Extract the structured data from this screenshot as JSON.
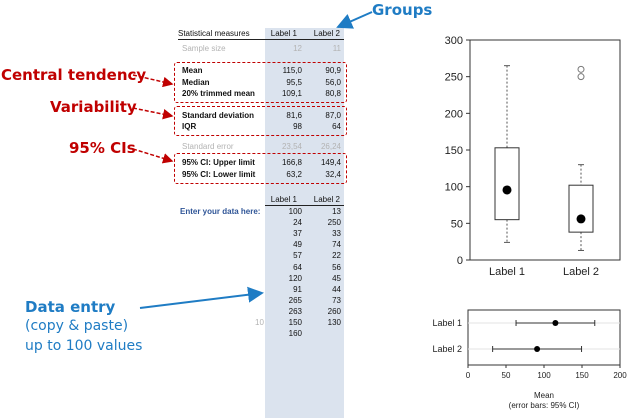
{
  "table": {
    "header": {
      "title": "Statistical measures",
      "label1": "Label 1",
      "label2": "Label 2"
    },
    "sample_size": {
      "label": "Sample size",
      "v1": "12",
      "v2": "11"
    },
    "central": [
      {
        "label": "Mean",
        "v1": "115,0",
        "v2": "90,9"
      },
      {
        "label": "Median",
        "v1": "95,5",
        "v2": "56,0"
      },
      {
        "label": "20% trimmed mean",
        "v1": "109,1",
        "v2": "80,8"
      }
    ],
    "variability": [
      {
        "label": "Standard deviation",
        "v1": "81,6",
        "v2": "87,0"
      },
      {
        "label": "IQR",
        "v1": "98",
        "v2": "64"
      }
    ],
    "std_error": {
      "label": "Standard error",
      "v1": "23,54",
      "v2": "26,24"
    },
    "ci": [
      {
        "label": "95% CI: Upper limit",
        "v1": "166,8",
        "v2": "149,4"
      },
      {
        "label": "95% CI: Lower limit",
        "v1": "63,2",
        "v2": "32,4"
      }
    ],
    "entry_header": {
      "label1": "Label 1",
      "label2": "Label 2"
    },
    "entry_prompt": "Enter your data here:",
    "row_marker": "10",
    "data_rows": [
      [
        "100",
        "13"
      ],
      [
        "24",
        "250"
      ],
      [
        "37",
        "33"
      ],
      [
        "49",
        "74"
      ],
      [
        "57",
        "22"
      ],
      [
        "64",
        "56"
      ],
      [
        "120",
        "45"
      ],
      [
        "91",
        "44"
      ],
      [
        "265",
        "73"
      ],
      [
        "263",
        "260"
      ],
      [
        "150",
        "130"
      ],
      [
        "160",
        ""
      ]
    ]
  },
  "annotations": {
    "groups": "Groups",
    "central": "Central tendency",
    "variability": "Variability",
    "ci": "95% CIs",
    "data_entry_title": "Data entry",
    "data_entry_line2": "(copy & paste)",
    "data_entry_line3": "up to 100 values",
    "annotation_color_red": "#c00000",
    "annotation_color_blue": "#1f7cc4"
  },
  "chart_data": [
    {
      "type": "boxplot",
      "categories": [
        "Label 1",
        "Label 2"
      ],
      "ylim": [
        0,
        300
      ],
      "yticks": [
        "0",
        "50",
        "100",
        "150",
        "200",
        "250",
        "300"
      ],
      "boxes": [
        {
          "name": "Label 1",
          "whisker_low": 24,
          "q1": 55,
          "median": 95.5,
          "q3": 153,
          "whisker_high": 265,
          "mean": 115,
          "outliers": []
        },
        {
          "name": "Label 2",
          "whisker_low": 13,
          "q1": 38,
          "median": 56,
          "q3": 102,
          "whisker_high": 130,
          "mean": 90.9,
          "outliers": [
            250,
            260
          ]
        }
      ],
      "mean_marker": "filled-circle",
      "outlier_marker": "open-circle"
    },
    {
      "type": "errorbar",
      "categories": [
        "Label 1",
        "Label 2"
      ],
      "means": [
        115.0,
        90.9
      ],
      "ci_lower": [
        63.2,
        32.4
      ],
      "ci_upper": [
        166.8,
        149.4
      ],
      "xlim": [
        0,
        200
      ],
      "xticks": [
        "0",
        "50",
        "100",
        "150",
        "200"
      ],
      "xlabel": "Mean",
      "xlabel_sub": "(error bars: 95% CI)"
    }
  ]
}
